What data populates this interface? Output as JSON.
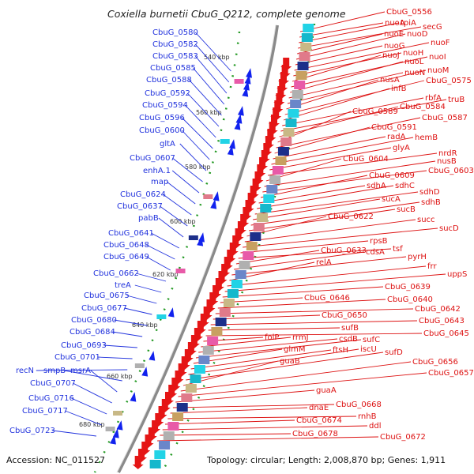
{
  "title": "Coxiella burnetii CbuG_Q212, complete genome",
  "footer": {
    "accession": "Accession: NC_011527",
    "topology": "Topology: circular; Length: 2,008,870 bp; Genes: 1,911"
  },
  "colors": {
    "plus_labels": "#2233dd",
    "minus_labels": "#dd1111",
    "backbone": "#888888",
    "ticks": "#228822"
  },
  "scale_ticks": [
    "540 kbp",
    "560 kbp",
    "580 kbp",
    "600 kbp",
    "620 kbp",
    "640 kbp",
    "660 kbp",
    "680 kbp"
  ],
  "left_labels": [
    "CbuG_0580",
    "CbuG_0582",
    "CbuG_0583",
    "CbuG_0585",
    "CbuG_0588",
    "CbuG_0592",
    "CbuG_0594",
    "CbuG_0596",
    "CbuG_0600",
    "gltA",
    "CbuG_0607",
    "enhA.1",
    "map",
    "CbuG_0624",
    "CbuG_0637",
    "pabB",
    "CbuG_0641",
    "CbuG_0648",
    "CbuG_0649",
    "CbuG_0662",
    "treA",
    "CbuG_0675",
    "CbuG_0677",
    "CbuG_0680",
    "CbuG_0684",
    "CbuG_0693",
    "CbuG_0701",
    "recN",
    "smpB",
    "msrA",
    "CbuG_0707",
    "CbuG_0716",
    "CbuG_0717",
    "CbuG_0723"
  ],
  "right_labels": [
    "CbuG_0556",
    "nuoA",
    "tpiA",
    "secG",
    "nuoE",
    "nuoD",
    "nuoG",
    "nuoF",
    "nuoH",
    "nuoJ",
    "nuoI",
    "nuoL",
    "nuoN",
    "nuoM",
    "nusA",
    "CbuG_0575",
    "infB",
    "rbfA",
    "truB",
    "CbuG_0584",
    "CbuG_0589",
    "CbuG_0587",
    "CbuG_0591",
    "radA",
    "hemB",
    "glyA",
    "nrdR",
    "CbuG_0604",
    "nusB",
    "CbuG_0603",
    "CbuG_0609",
    "sdhA",
    "sdhC",
    "sdhD",
    "sucA",
    "sdhB",
    "sucB",
    "CbuG_0622",
    "succ",
    "sucD",
    "rpsB",
    "tsf",
    "CbuG_0633",
    "cdsA",
    "pyrH",
    "relA",
    "frr",
    "uppS",
    "CbuG_0639",
    "CbuG_0646",
    "CbuG_0640",
    "CbuG_0642",
    "CbuG_0650",
    "CbuG_0643",
    "sufB",
    "CbuG_0645",
    "folP",
    "rrmJ",
    "csdB",
    "sufC",
    "glmM",
    "ftsH",
    "iscU",
    "sufD",
    "guaB",
    "CbuG_0656",
    "CbuG_0657",
    "guaA",
    "CbuG_0668",
    "dnaE",
    "rnhB",
    "CbuG_0674",
    "ddl",
    "CbuG_0678",
    "CbuG_0672"
  ]
}
